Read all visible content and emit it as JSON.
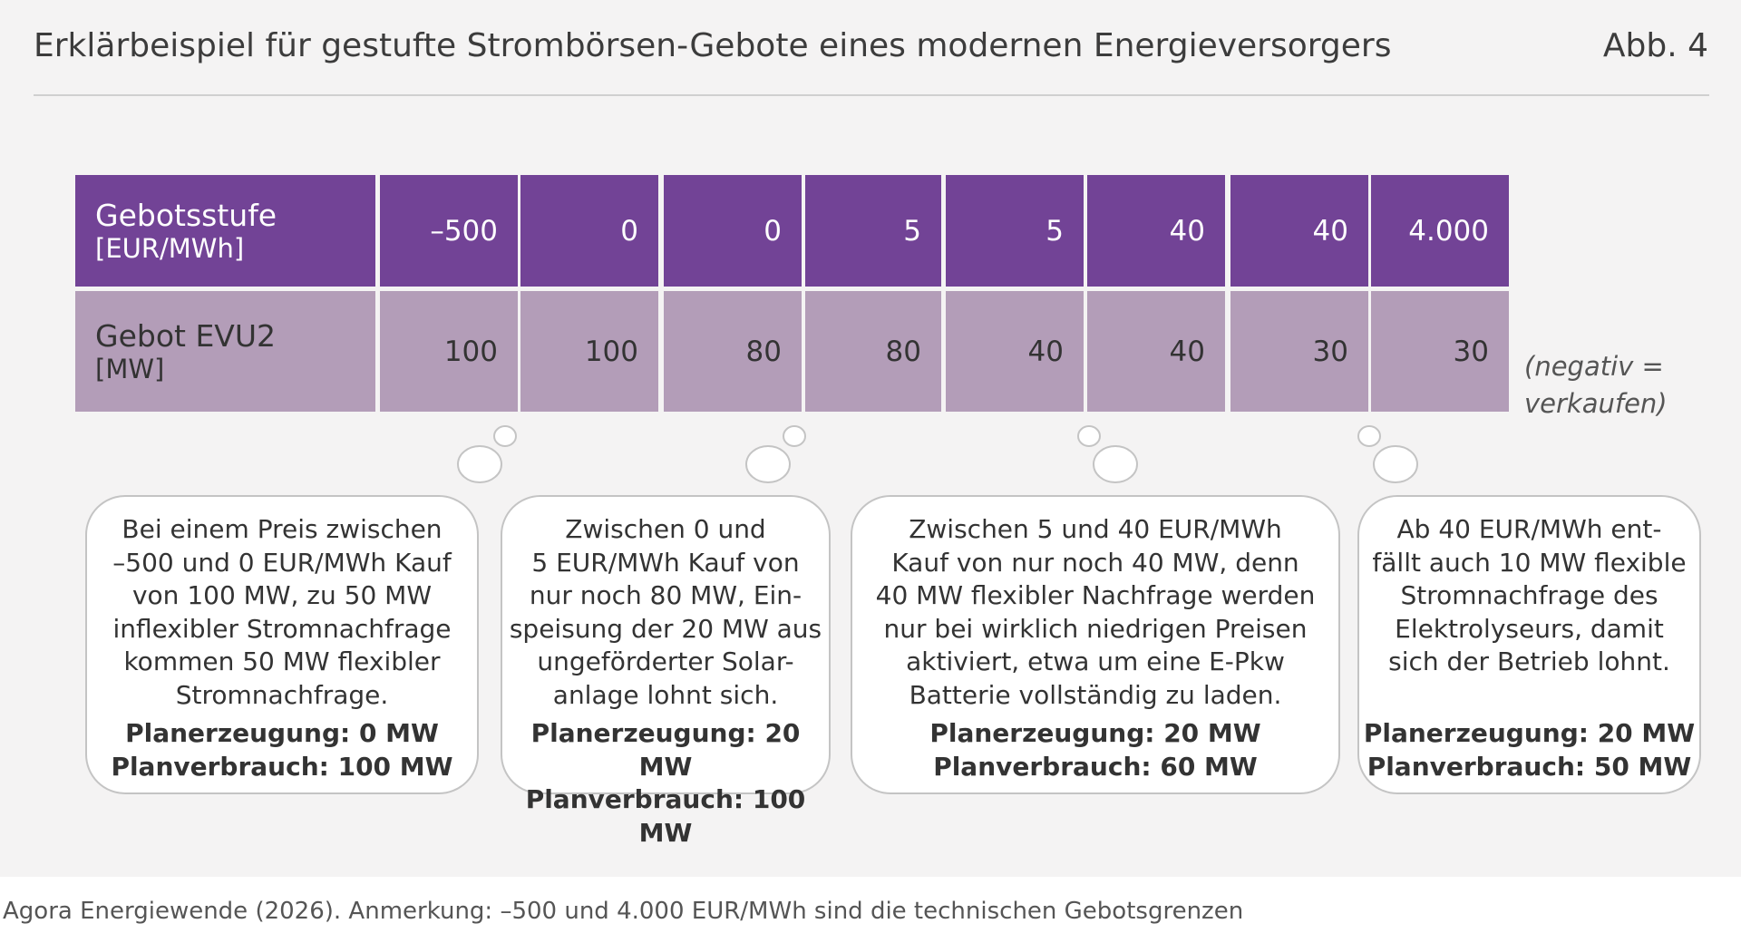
{
  "header": {
    "title": "Erklärbeispiel für gestufte Strombörsen-Gebote eines modernen Energieversorgers",
    "figure_label": "Abb. 4"
  },
  "table": {
    "rows": [
      {
        "label": [
          "Gebotsstufe",
          "[EUR/MWh]"
        ],
        "cells": [
          "–500",
          "0",
          "0",
          "5",
          "5",
          "40",
          "40",
          "4.000"
        ]
      },
      {
        "label": [
          "Gebot EVU2",
          "[MW]"
        ],
        "cells": [
          "100",
          "100",
          "80",
          "80",
          "40",
          "40",
          "30",
          "30"
        ]
      }
    ],
    "note": [
      "(negativ =",
      "verkaufen)"
    ]
  },
  "bubbles": [
    {
      "lines": [
        "Bei einem Preis zwischen",
        "–500 und 0 EUR/MWh Kauf",
        "von 100 MW, zu 50 MW",
        "inflexibler Stromnachfrage",
        "kommen 50 MW flexibler",
        "Stromnachfrage."
      ],
      "bold": [
        "Planerzeugung: 0 MW",
        "Planverbrauch: 100 MW"
      ]
    },
    {
      "lines": [
        "Zwischen 0 und",
        "5 EUR/MWh Kauf von",
        "nur noch 80 MW, Ein-",
        "speisung der 20 MW aus",
        "ungeförderter Solar-",
        "anlage lohnt sich."
      ],
      "bold": [
        "Planerzeugung: 20 MW",
        "Planverbrauch: 100 MW"
      ]
    },
    {
      "lines": [
        "Zwischen 5 und 40 EUR/MWh",
        "Kauf von nur noch 40 MW, denn",
        "40 MW flexibler Nachfrage werden",
        "nur bei wirklich niedrigen Preisen",
        "aktiviert, etwa um eine E-Pkw",
        "Batterie vollständig zu laden."
      ],
      "bold": [
        "Planerzeugung: 20 MW",
        "Planverbrauch: 60 MW"
      ]
    },
    {
      "lines": [
        "Ab 40 EUR/MWh ent-",
        "fällt auch 10 MW flexible",
        "Stromnachfrage des",
        "Elektrolyseurs, damit",
        "sich der Betrieb lohnt."
      ],
      "bold": [
        "Planerzeugung: 20 MW",
        "Planverbrauch: 50 MW"
      ]
    }
  ],
  "footer": {
    "source": "Agora Energiewende (2026). Anmerkung: –500 und 4.000 EUR/MWh sind die technischen Gebotsgrenzen"
  }
}
